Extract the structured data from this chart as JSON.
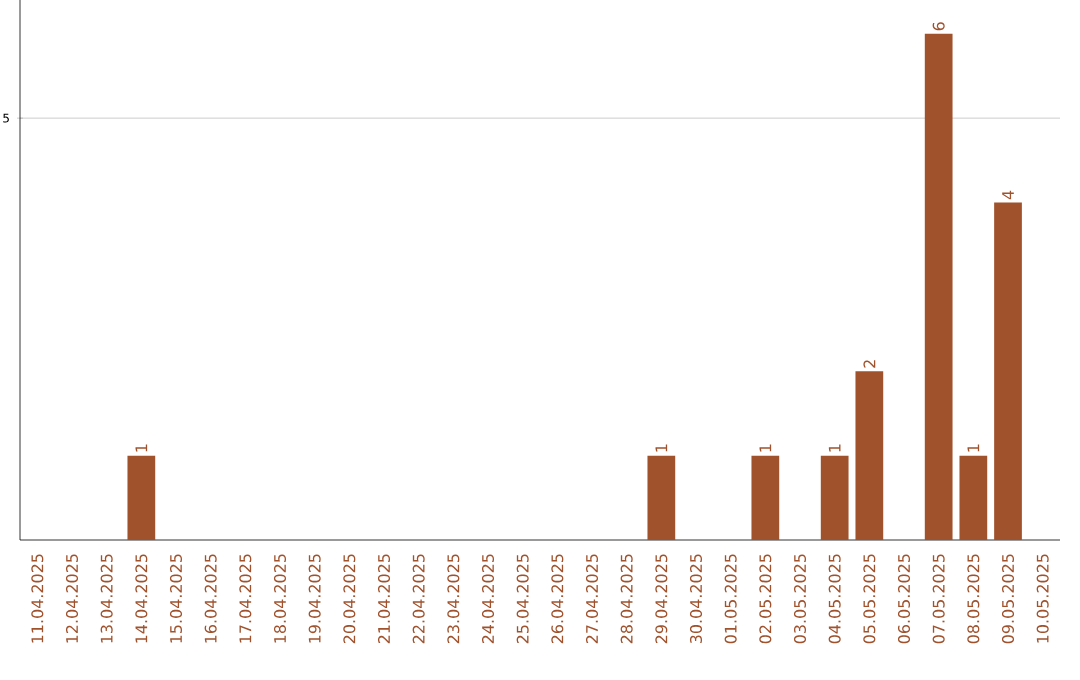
{
  "chart_data": {
    "type": "bar",
    "categories": [
      "11.04.2025",
      "12.04.2025",
      "13.04.2025",
      "14.04.2025",
      "15.04.2025",
      "16.04.2025",
      "17.04.2025",
      "18.04.2025",
      "19.04.2025",
      "20.04.2025",
      "21.04.2025",
      "22.04.2025",
      "23.04.2025",
      "24.04.2025",
      "25.04.2025",
      "26.04.2025",
      "27.04.2025",
      "28.04.2025",
      "29.04.2025",
      "30.04.2025",
      "01.05.2025",
      "02.05.2025",
      "03.05.2025",
      "04.05.2025",
      "05.05.2025",
      "06.05.2025",
      "07.05.2025",
      "08.05.2025",
      "09.05.2025",
      "10.05.2025"
    ],
    "values": [
      0,
      0,
      0,
      1,
      0,
      0,
      0,
      0,
      0,
      0,
      0,
      0,
      0,
      0,
      0,
      0,
      0,
      0,
      1,
      0,
      0,
      1,
      0,
      1,
      2,
      0,
      6,
      1,
      4,
      0
    ],
    "value_labels": [
      null,
      null,
      null,
      "1",
      null,
      null,
      null,
      null,
      null,
      null,
      null,
      null,
      null,
      null,
      null,
      null,
      null,
      null,
      "1",
      null,
      null,
      "1",
      null,
      "1",
      "2",
      null,
      "6",
      "1",
      "4",
      null
    ],
    "color": "#a0522d",
    "ylim": [
      0,
      6.4
    ],
    "yticks": [
      5
    ],
    "grid": "y"
  }
}
